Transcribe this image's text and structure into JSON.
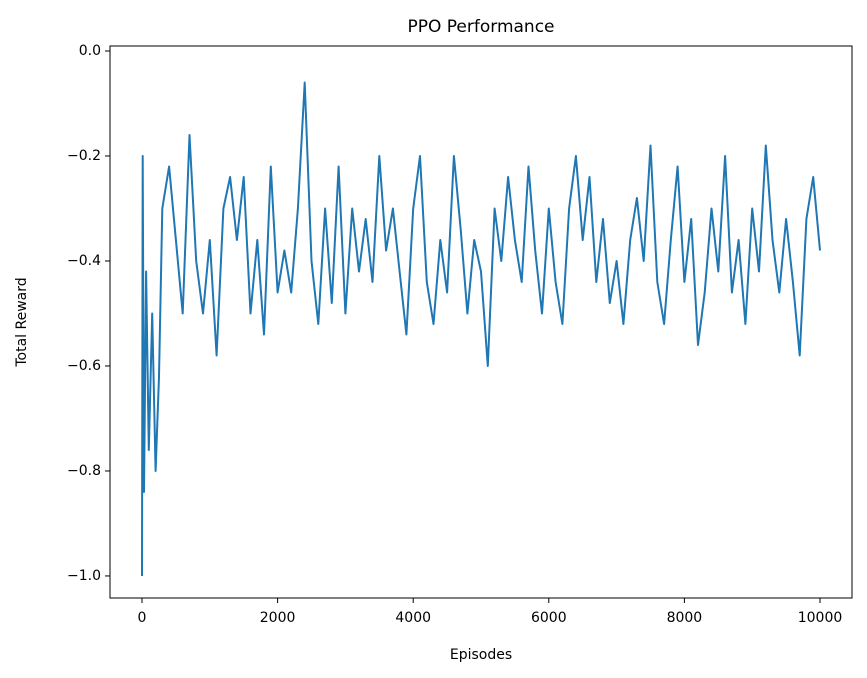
{
  "chart_data": {
    "type": "line",
    "title": "PPO Performance",
    "x_label": "Episodes",
    "y_label": "Total Reward",
    "x": [
      0,
      10,
      30,
      60,
      100,
      150,
      200,
      250,
      300,
      400,
      500,
      600,
      700,
      800,
      900,
      1000,
      1100,
      1200,
      1300,
      1400,
      1500,
      1600,
      1700,
      1800,
      1900,
      2000,
      2100,
      2200,
      2300,
      2400,
      2500,
      2600,
      2700,
      2800,
      2900,
      3000,
      3100,
      3200,
      3300,
      3400,
      3500,
      3600,
      3700,
      3800,
      3900,
      4000,
      4100,
      4200,
      4300,
      4400,
      4500,
      4600,
      4700,
      4800,
      4900,
      5000,
      5100,
      5200,
      5300,
      5400,
      5500,
      5600,
      5700,
      5800,
      5900,
      6000,
      6100,
      6200,
      6300,
      6400,
      6500,
      6600,
      6700,
      6800,
      6900,
      7000,
      7100,
      7200,
      7300,
      7400,
      7500,
      7600,
      7700,
      7800,
      7900,
      8000,
      8100,
      8200,
      8300,
      8400,
      8500,
      8600,
      8700,
      8800,
      8900,
      9000,
      9100,
      9200,
      9300,
      9400,
      9500,
      9600,
      9700,
      9800,
      9900,
      10000
    ],
    "series": [
      {
        "name": "Total Reward",
        "color": "#1f77b4",
        "values": [
          -1.0,
          -0.2,
          -0.84,
          -0.42,
          -0.76,
          -0.5,
          -0.8,
          -0.62,
          -0.3,
          -0.22,
          -0.36,
          -0.5,
          -0.16,
          -0.4,
          -0.5,
          -0.36,
          -0.58,
          -0.3,
          -0.24,
          -0.36,
          -0.24,
          -0.5,
          -0.36,
          -0.54,
          -0.22,
          -0.46,
          -0.38,
          -0.46,
          -0.3,
          -0.06,
          -0.4,
          -0.52,
          -0.3,
          -0.48,
          -0.22,
          -0.5,
          -0.3,
          -0.42,
          -0.32,
          -0.44,
          -0.2,
          -0.38,
          -0.3,
          -0.42,
          -0.54,
          -0.3,
          -0.2,
          -0.44,
          -0.52,
          -0.36,
          -0.46,
          -0.2,
          -0.34,
          -0.5,
          -0.36,
          -0.42,
          -0.6,
          -0.3,
          -0.4,
          -0.24,
          -0.36,
          -0.44,
          -0.22,
          -0.38,
          -0.5,
          -0.3,
          -0.44,
          -0.52,
          -0.3,
          -0.2,
          -0.36,
          -0.24,
          -0.44,
          -0.32,
          -0.48,
          -0.4,
          -0.52,
          -0.36,
          -0.28,
          -0.4,
          -0.18,
          -0.44,
          -0.52,
          -0.36,
          -0.22,
          -0.44,
          -0.32,
          -0.56,
          -0.46,
          -0.3,
          -0.42,
          -0.2,
          -0.46,
          -0.36,
          -0.52,
          -0.3,
          -0.42,
          -0.18,
          -0.36,
          -0.46,
          -0.32,
          -0.44,
          -0.58,
          -0.32,
          -0.24,
          -0.38
        ]
      }
    ],
    "xlim": [
      -472,
      10472
    ],
    "ylim": [
      -1.042,
      0.0095
    ],
    "xticks": [
      0,
      2000,
      4000,
      6000,
      8000,
      10000
    ],
    "yticks": [
      {
        "value": -1,
        "label": "−1.0"
      },
      {
        "value": -0.8,
        "label": "−0.8"
      },
      {
        "value": -0.6,
        "label": "−0.6"
      },
      {
        "value": -0.4,
        "label": "−0.4"
      },
      {
        "value": -0.2,
        "label": "−0.2"
      },
      {
        "value": 0,
        "label": "0.0"
      }
    ]
  }
}
